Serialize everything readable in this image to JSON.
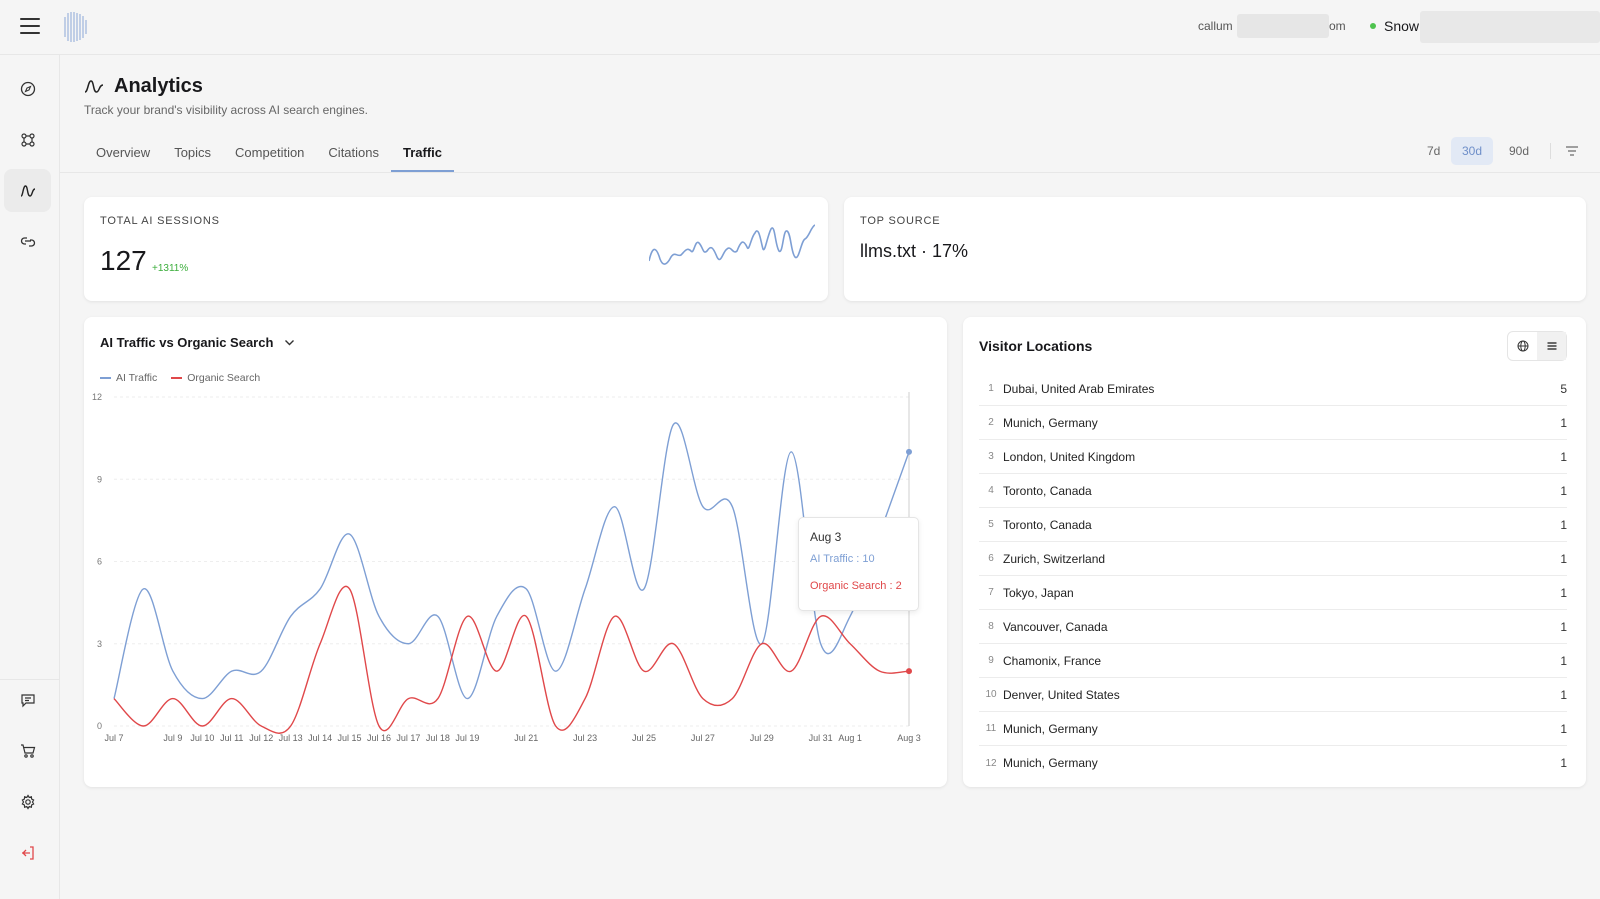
{
  "topbar": {
    "email_prefix": "callum",
    "email_suffix": "om",
    "org_name": "Snow"
  },
  "sidebar": {
    "items": [
      {
        "icon": "compass-icon"
      },
      {
        "icon": "nodes-icon"
      },
      {
        "icon": "analytics-icon",
        "active": true
      },
      {
        "icon": "link-icon"
      },
      {
        "icon": "chat-icon"
      },
      {
        "icon": "cart-icon"
      },
      {
        "icon": "gear-icon"
      },
      {
        "icon": "logout-icon"
      }
    ]
  },
  "header": {
    "title": "Analytics",
    "subtitle": "Track your brand's visibility across AI search engines."
  },
  "tabs": [
    {
      "label": "Overview"
    },
    {
      "label": "Topics"
    },
    {
      "label": "Competition"
    },
    {
      "label": "Citations"
    },
    {
      "label": "Traffic",
      "active": true
    }
  ],
  "ranges": [
    {
      "label": "7d"
    },
    {
      "label": "30d",
      "active": true
    },
    {
      "label": "90d"
    }
  ],
  "kpi": {
    "sessions_label": "TOTAL AI SESSIONS",
    "sessions_value": "127",
    "sessions_delta": "+1311%",
    "top_source_label": "TOP SOURCE",
    "top_source_value": "llms.txt · 17%"
  },
  "chart_panel": {
    "title": "AI Traffic vs Organic Search",
    "tooltip": {
      "date": "Aug 3",
      "ai_line": "AI Traffic : 10",
      "organic_line": "Organic Search : 2"
    }
  },
  "chart_data": {
    "type": "line",
    "title": "AI Traffic vs Organic Search",
    "xlabel": "",
    "ylabel": "",
    "ylim": [
      0,
      12
    ],
    "yticks": [
      0,
      3,
      6,
      9,
      12
    ],
    "grid": true,
    "legend_position": "top-left",
    "x": [
      "Jul 7",
      "Jul 8",
      "Jul 9",
      "Jul 10",
      "Jul 11",
      "Jul 12",
      "Jul 13",
      "Jul 14",
      "Jul 15",
      "Jul 16",
      "Jul 17",
      "Jul 18",
      "Jul 19",
      "Jul 20",
      "Jul 21",
      "Jul 22",
      "Jul 23",
      "Jul 24",
      "Jul 25",
      "Jul 26",
      "Jul 27",
      "Jul 28",
      "Jul 29",
      "Jul 30",
      "Jul 31",
      "Aug 1",
      "Aug 2",
      "Aug 3"
    ],
    "x_tick_labels": [
      "Jul 7",
      "Jul 9",
      "Jul 10",
      "Jul 11",
      "Jul 12",
      "Jul 13",
      "Jul 14",
      "Jul 15",
      "Jul 16",
      "Jul 17",
      "Jul 18",
      "Jul 19",
      "Jul 21",
      "Jul 23",
      "Jul 25",
      "Jul 27",
      "Jul 29",
      "Jul 31",
      "Aug 1",
      "Aug 3"
    ],
    "series": [
      {
        "name": "AI Traffic",
        "color": "#7e9fd4",
        "values": [
          1,
          5,
          2,
          1,
          2,
          2,
          4,
          5,
          7,
          4,
          3,
          4,
          1,
          4,
          5,
          2,
          5,
          8,
          5,
          11,
          8,
          8,
          3,
          10,
          3,
          4,
          7,
          10
        ]
      },
      {
        "name": "Organic Search",
        "color": "#e0484a",
        "values": [
          1,
          0,
          1,
          0,
          1,
          0,
          0,
          3,
          5,
          0,
          1,
          1,
          4,
          2,
          4,
          0,
          1,
          4,
          2,
          3,
          1,
          1,
          3,
          2,
          4,
          3,
          2,
          2
        ]
      }
    ]
  },
  "locations": {
    "title": "Visitor Locations",
    "rows": [
      {
        "rank": "1",
        "name": "Dubai, United Arab Emirates",
        "count": "5"
      },
      {
        "rank": "2",
        "name": "Munich, Germany",
        "count": "1"
      },
      {
        "rank": "3",
        "name": "London, United Kingdom",
        "count": "1"
      },
      {
        "rank": "4",
        "name": "Toronto, Canada",
        "count": "1"
      },
      {
        "rank": "5",
        "name": "Toronto, Canada",
        "count": "1"
      },
      {
        "rank": "6",
        "name": "Zurich, Switzerland",
        "count": "1"
      },
      {
        "rank": "7",
        "name": "Tokyo, Japan",
        "count": "1"
      },
      {
        "rank": "8",
        "name": "Vancouver, Canada",
        "count": "1"
      },
      {
        "rank": "9",
        "name": "Chamonix, France",
        "count": "1"
      },
      {
        "rank": "10",
        "name": "Denver, United States",
        "count": "1"
      },
      {
        "rank": "11",
        "name": "Munich, Germany",
        "count": "1"
      },
      {
        "rank": "12",
        "name": "Munich, Germany",
        "count": "1"
      }
    ]
  }
}
